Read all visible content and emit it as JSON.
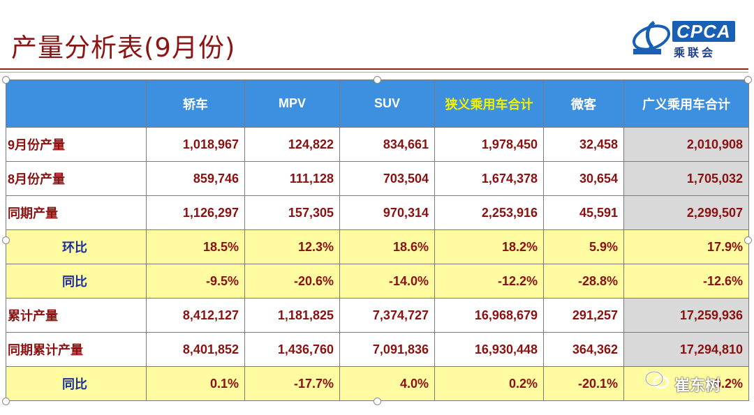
{
  "title": "产量分析表(9月份)",
  "logo": {
    "text": "CPCA",
    "cn": "乘联会",
    "sub": "CPCA"
  },
  "table": {
    "headers": [
      "",
      "轿车",
      "MPV",
      "SUV",
      "狭义乘用车合计",
      "微客",
      "广义乘用车合计"
    ],
    "rows": [
      {
        "label": "9月份产量",
        "values": [
          "1,018,967",
          "124,822",
          "834,661",
          "1,978,450",
          "32,458",
          "2,010,908"
        ]
      },
      {
        "label": "8月份产量",
        "values": [
          "859,746",
          "111,128",
          "703,504",
          "1,674,378",
          "30,654",
          "1,705,032"
        ]
      },
      {
        "label": "同期产量",
        "values": [
          "1,126,297",
          "157,305",
          "970,314",
          "2,253,916",
          "45,591",
          "2,299,507"
        ]
      },
      {
        "label": "环比",
        "values": [
          "18.5%",
          "12.3%",
          "18.6%",
          "18.2%",
          "5.9%",
          "17.9%"
        ]
      },
      {
        "label": "同比",
        "values": [
          "-9.5%",
          "-20.6%",
          "-14.0%",
          "-12.2%",
          "-28.8%",
          "-12.6%"
        ]
      },
      {
        "label": "累计产量",
        "values": [
          "8,412,127",
          "1,181,825",
          "7,374,727",
          "16,968,679",
          "291,257",
          "17,259,936"
        ]
      },
      {
        "label": "同期累计产量",
        "values": [
          "8,401,852",
          "1,436,760",
          "7,091,836",
          "16,930,448",
          "364,362",
          "17,294,810"
        ]
      },
      {
        "label": "同比",
        "values": [
          "0.1%",
          "-17.7%",
          "4.0%",
          "0.2%",
          "-20.1%",
          "-0.2%"
        ]
      }
    ]
  },
  "watermark": "崔东树",
  "colors": {
    "header_bg": "#3d8fe0",
    "highlight_header": "#f2f200",
    "ratio_row_bg": "#fefba0",
    "value_text": "#8b1010",
    "ratio_label": "#1a2f9a"
  }
}
